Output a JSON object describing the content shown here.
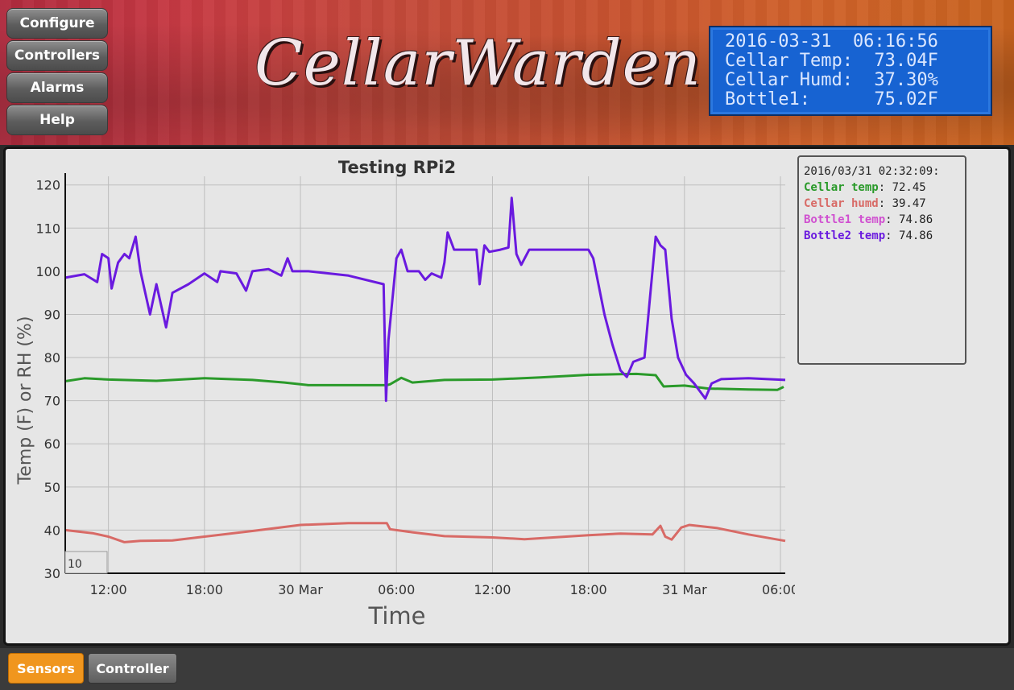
{
  "nav": {
    "items": [
      "Configure",
      "Controllers",
      "Alarms",
      "Help"
    ]
  },
  "logo": {
    "text": "CellarWarden"
  },
  "lcd": {
    "line1": "2016-03-31  06:16:56",
    "line2": "Cellar Temp:  73.04F",
    "line3": "Cellar Humd:  37.30%",
    "line4": "Bottle1:      75.02F"
  },
  "legend": {
    "timestamp": "2016/03/31 02:32:09:",
    "entries": [
      {
        "label": "Cellar temp",
        "value": "72.45",
        "color": "#2a9a2a"
      },
      {
        "label": "Cellar humd",
        "value": "39.47",
        "color": "#d86a66"
      },
      {
        "label": "Bottle1 temp",
        "value": "74.86",
        "color": "#d050d0"
      },
      {
        "label": "Bottle2 temp",
        "value": "74.86",
        "color": "#6a1adf"
      }
    ]
  },
  "tabs": {
    "sensors": "Sensors",
    "controller": "Controller"
  },
  "chart_data": {
    "type": "line",
    "title": "Testing RPi2",
    "xlabel": "Time",
    "ylabel": "Temp (F) or RH (%)",
    "ylim": [
      30,
      122
    ],
    "xlim_hours": [
      9.3,
      54.3
    ],
    "x_ticks": [
      {
        "label": "12:00",
        "h": 12
      },
      {
        "label": "18:00",
        "h": 18
      },
      {
        "label": "30 Mar",
        "h": 24
      },
      {
        "label": "06:00",
        "h": 30
      },
      {
        "label": "12:00",
        "h": 36
      },
      {
        "label": "18:00",
        "h": 42
      },
      {
        "label": "31 Mar",
        "h": 48
      },
      {
        "label": "06:00",
        "h": 54
      }
    ],
    "y_ticks": [
      30,
      40,
      50,
      60,
      70,
      80,
      90,
      100,
      110,
      120
    ],
    "range_selector": "10",
    "grid": true,
    "series": [
      {
        "name": "Cellar temp",
        "color": "#2a9a2a",
        "points": [
          [
            9.3,
            74.5
          ],
          [
            10.5,
            75.2
          ],
          [
            12,
            74.9
          ],
          [
            15,
            74.6
          ],
          [
            18,
            75.2
          ],
          [
            21,
            74.8
          ],
          [
            23,
            74.2
          ],
          [
            24.5,
            73.6
          ],
          [
            27,
            73.6
          ],
          [
            29.4,
            73.6
          ],
          [
            29.6,
            73.8
          ],
          [
            30.3,
            75.3
          ],
          [
            31,
            74.2
          ],
          [
            33,
            74.8
          ],
          [
            36,
            74.9
          ],
          [
            39,
            75.4
          ],
          [
            42,
            76.0
          ],
          [
            45,
            76.2
          ],
          [
            46.2,
            75.9
          ],
          [
            46.7,
            73.3
          ],
          [
            48,
            73.5
          ],
          [
            49.5,
            72.8
          ],
          [
            52,
            72.6
          ],
          [
            53.8,
            72.5
          ],
          [
            54.2,
            73.2
          ]
        ]
      },
      {
        "name": "Cellar humd",
        "color": "#d86a66",
        "points": [
          [
            9.3,
            40
          ],
          [
            11,
            39.3
          ],
          [
            12,
            38.5
          ],
          [
            13,
            37.2
          ],
          [
            14,
            37.5
          ],
          [
            16,
            37.6
          ],
          [
            18,
            38.5
          ],
          [
            21,
            39.8
          ],
          [
            24,
            41.2
          ],
          [
            27,
            41.6
          ],
          [
            29.4,
            41.6
          ],
          [
            29.6,
            40.2
          ],
          [
            31,
            39.5
          ],
          [
            33,
            38.6
          ],
          [
            36,
            38.3
          ],
          [
            38,
            37.9
          ],
          [
            42,
            38.8
          ],
          [
            44,
            39.2
          ],
          [
            46,
            39.0
          ],
          [
            46.5,
            41.0
          ],
          [
            46.8,
            38.5
          ],
          [
            47.2,
            37.8
          ],
          [
            47.8,
            40.6
          ],
          [
            48.3,
            41.2
          ],
          [
            50,
            40.5
          ],
          [
            52,
            39.0
          ],
          [
            54.3,
            37.5
          ]
        ]
      },
      {
        "name": "Bottle2 temp",
        "color": "#6a1adf",
        "points": [
          [
            9.3,
            98.5
          ],
          [
            10.5,
            99.3
          ],
          [
            11.3,
            97.5
          ],
          [
            11.6,
            104
          ],
          [
            12.0,
            103
          ],
          [
            12.2,
            96
          ],
          [
            12.6,
            102
          ],
          [
            13.0,
            104
          ],
          [
            13.3,
            103
          ],
          [
            13.7,
            108
          ],
          [
            14.0,
            100
          ],
          [
            14.6,
            90
          ],
          [
            15.0,
            97
          ],
          [
            15.6,
            87
          ],
          [
            16.0,
            95
          ],
          [
            17.0,
            97
          ],
          [
            18.0,
            99.5
          ],
          [
            18.8,
            97.5
          ],
          [
            19.0,
            100
          ],
          [
            20.0,
            99.5
          ],
          [
            20.6,
            95.5
          ],
          [
            21.0,
            100
          ],
          [
            22.0,
            100.5
          ],
          [
            22.8,
            99
          ],
          [
            23.2,
            103
          ],
          [
            23.5,
            100
          ],
          [
            24.5,
            100
          ],
          [
            27,
            99
          ],
          [
            29.2,
            97
          ],
          [
            29.35,
            70
          ],
          [
            29.5,
            84
          ],
          [
            30.0,
            103
          ],
          [
            30.3,
            105
          ],
          [
            30.7,
            100
          ],
          [
            31.4,
            100
          ],
          [
            31.8,
            98
          ],
          [
            32.2,
            99.5
          ],
          [
            32.8,
            98.5
          ],
          [
            33.0,
            102
          ],
          [
            33.2,
            109
          ],
          [
            33.6,
            105
          ],
          [
            35.0,
            105
          ],
          [
            35.2,
            97
          ],
          [
            35.5,
            106
          ],
          [
            35.8,
            104.5
          ],
          [
            36.5,
            105
          ],
          [
            37.0,
            105.5
          ],
          [
            37.2,
            117
          ],
          [
            37.5,
            104
          ],
          [
            37.8,
            101.5
          ],
          [
            38.3,
            105
          ],
          [
            40.5,
            105
          ],
          [
            42.0,
            105
          ],
          [
            42.3,
            103
          ],
          [
            43.0,
            90
          ],
          [
            43.5,
            83
          ],
          [
            44.0,
            77
          ],
          [
            44.4,
            75.5
          ],
          [
            44.8,
            79
          ],
          [
            45.5,
            80
          ],
          [
            45.8,
            92
          ],
          [
            46.2,
            108
          ],
          [
            46.5,
            106
          ],
          [
            46.8,
            105
          ],
          [
            47.2,
            89
          ],
          [
            47.6,
            80
          ],
          [
            48.1,
            76
          ],
          [
            48.6,
            74
          ],
          [
            49.3,
            70.5
          ],
          [
            49.7,
            74
          ],
          [
            50.3,
            75
          ],
          [
            52,
            75.2
          ],
          [
            54.3,
            74.8
          ]
        ]
      }
    ]
  }
}
